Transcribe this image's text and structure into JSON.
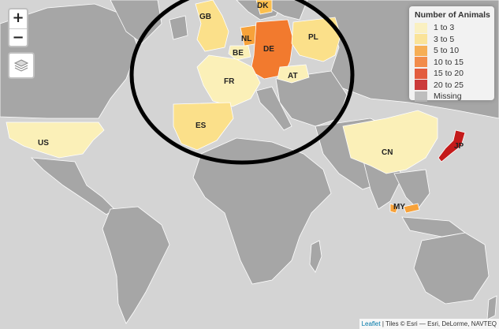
{
  "map": {
    "country_labels": {
      "gb": "GB",
      "dk": "DK",
      "nl": "NL",
      "be": "BE",
      "de": "DE",
      "pl": "PL",
      "fr": "FR",
      "at": "AT",
      "es": "ES",
      "us": "US",
      "cn": "CN",
      "jp": "JP",
      "my": "MY"
    },
    "highlight_colors": {
      "gb": "#fbe08a",
      "dk": "#fbbf4e",
      "nl": "#f7a23a",
      "be": "#fbf0b8",
      "de": "#f27a2e",
      "pl": "#fbe08a",
      "fr": "#fbf0b8",
      "at": "#fbf0b8",
      "es": "#fbe08a",
      "us": "#fbf0b8",
      "cn": "#fbf0b8",
      "jp": "#c41a1a",
      "my": "#f7a23a"
    },
    "land_color": "#a6a6a6",
    "ocean_color": "#d4d4d4"
  },
  "controls": {
    "zoom_in": "+",
    "zoom_out": "−",
    "layers_icon": "layers-icon"
  },
  "legend": {
    "title": "Number of Animals",
    "items": [
      {
        "label": "1 to 3",
        "color": "#fbf0b8"
      },
      {
        "label": "3 to 5",
        "color": "#fbe08a"
      },
      {
        "label": "5 to 10",
        "color": "#f7a23a"
      },
      {
        "label": "10 to 15",
        "color": "#f27a2e"
      },
      {
        "label": "15 to 20",
        "color": "#e0421e"
      },
      {
        "label": "20 to 25",
        "color": "#c41a1a"
      },
      {
        "label": "Missing",
        "color": "#b5b5b5"
      }
    ]
  },
  "attribution": {
    "leaflet": "Leaflet",
    "text": " | Tiles © Esri — Esri, DeLorme, NAVTEQ"
  }
}
